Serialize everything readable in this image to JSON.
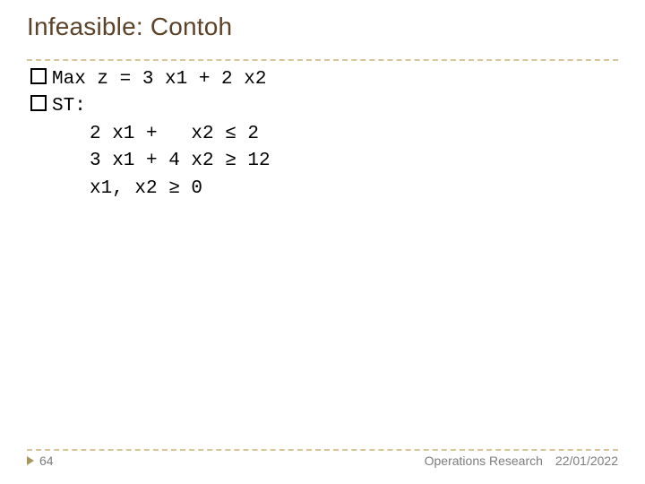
{
  "colors": {
    "title": "#5b4228",
    "divider": "#d6c69a",
    "text": "#000000",
    "accent": "#a9965f",
    "footer": "#7d7d7d"
  },
  "title": "Infeasible: Contoh",
  "content": {
    "line1": "Max z = 3 x1 + 2 x2",
    "line2": "ST:",
    "body1": "2 x1 +   x2 ≤ 2",
    "body2": "3 x1 + 4 x2 ≥ 12",
    "body3": "x1, x2 ≥ 0"
  },
  "footer": {
    "page": "64",
    "course": "Operations Research",
    "date": "22/01/2022"
  }
}
